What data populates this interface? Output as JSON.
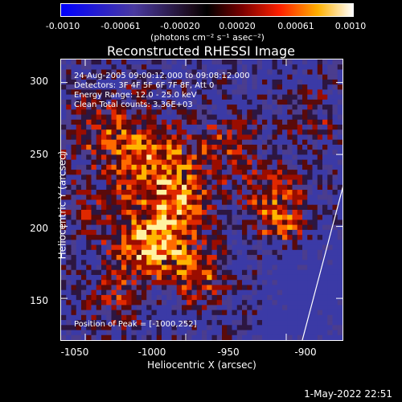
{
  "colorbar": {
    "ticks": [
      "-0.0010",
      "-0.00061",
      "-0.00020",
      "0.00020",
      "0.00061",
      "0.0010"
    ],
    "tick_values": [
      -0.001,
      -0.00061,
      -0.0002,
      0.0002,
      0.00061,
      0.001
    ],
    "range": [
      -0.001,
      0.001
    ],
    "unit_label": "(photons cm⁻² s⁻¹ asec⁻²)"
  },
  "title": "Reconstructed RHESSI Image",
  "annotations": {
    "time": "24-Aug-2005 09:00:12.000 to 09:08:12.000",
    "detectors": "Detectors: 3F 4F 5F 6F 7F 8F, Att 0",
    "energy": "Energy Range: 12.0 - 25.0 keV",
    "clean": "Clean     Total counts: 3.36E+03",
    "peak": "Position of Peak = [-1000,252]"
  },
  "axes": {
    "xlabel": "Heliocentric X (arcsec)",
    "ylabel": "Heliocentric Y (arcsec)",
    "xrange": [
      -1062,
      -922
    ],
    "yrange": [
      121,
      316
    ],
    "xticks": [
      -1050,
      -1000,
      -950,
      -900
    ],
    "xtick_labels": [
      "-1050",
      "-1000",
      "-950",
      "-900"
    ],
    "yticks": [
      150,
      200,
      250,
      300
    ],
    "ytick_labels": [
      "150",
      "200",
      "250",
      "300"
    ]
  },
  "limb": {
    "points": [
      [
        -942,
        121
      ],
      [
        -905,
        316
      ]
    ]
  },
  "timestamp": "1-May-2022 22:51"
}
